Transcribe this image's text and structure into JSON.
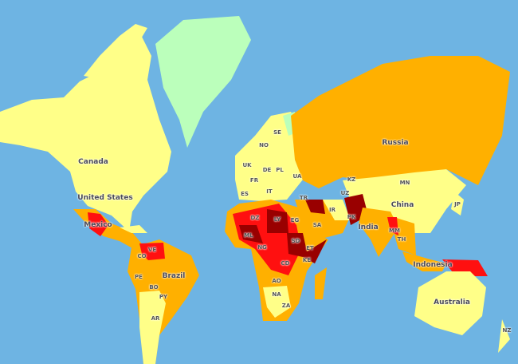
{
  "colors": {
    "ocean": "#6EB4E3",
    "level_1": "#BBFFBB",
    "level_2": "#FFFF88",
    "level_3": "#FFB000",
    "level_4": "#FF1010",
    "level_5": "#990000"
  },
  "labels": {
    "canada": "Canada",
    "united_states": "United States",
    "mexico": "Mexico",
    "ve": "VE",
    "co": "CO",
    "pe": "PE",
    "bo": "BO",
    "py": "PY",
    "ar": "AR",
    "brazil": "Brazil",
    "uk": "UK",
    "no": "NO",
    "se": "SE",
    "de": "DE",
    "pl": "PL",
    "fr": "FR",
    "es": "ES",
    "it": "IT",
    "ua": "UA",
    "tr": "TR",
    "kz": "KZ",
    "mn": "MN",
    "uz": "UZ",
    "ir": "IR",
    "russia": "Russia",
    "china": "China",
    "india": "India",
    "pk": "PK",
    "mm": "MM",
    "th": "TH",
    "indonesia": "Indonesia",
    "australia": "Australia",
    "nz": "NZ",
    "jp": "JP",
    "dz": "DZ",
    "ly": "LY",
    "eg": "EG",
    "ml": "ML",
    "ng": "NG",
    "sd": "SD",
    "et": "ET",
    "ke": "KE",
    "cd": "CD",
    "ao": "AO",
    "na": "NA",
    "za": "ZA",
    "sa": "SA"
  }
}
